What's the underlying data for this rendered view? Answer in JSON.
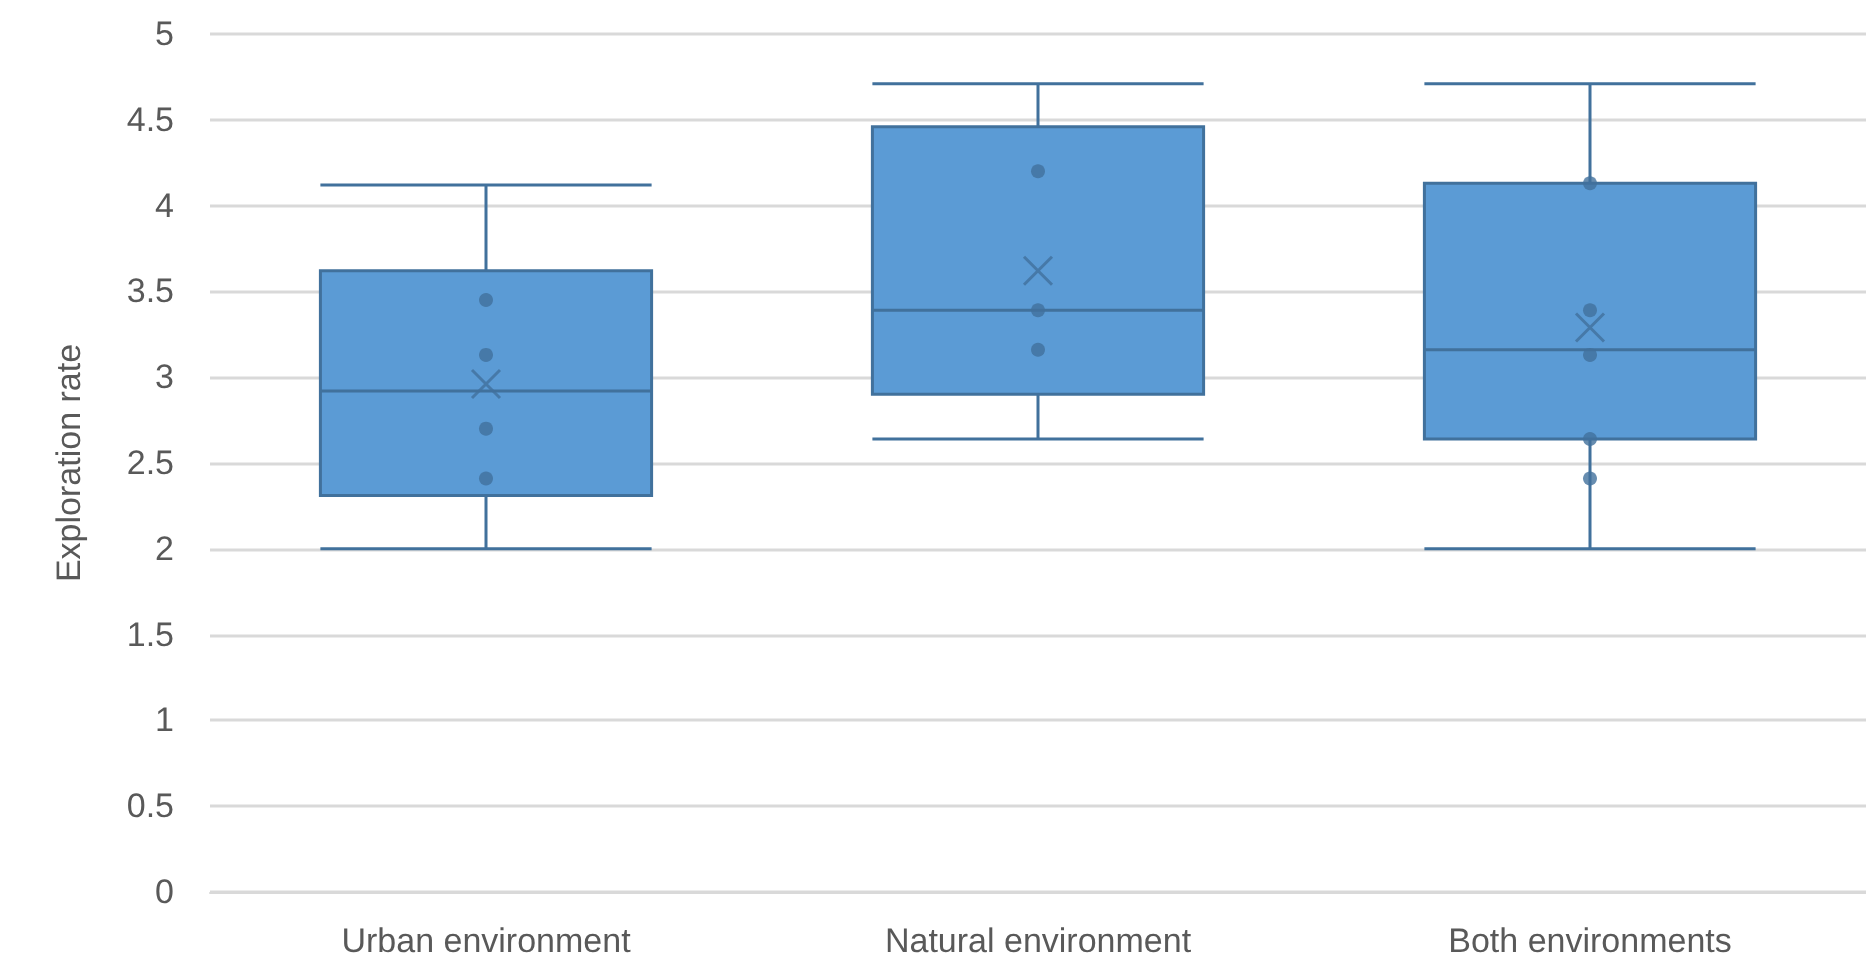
{
  "chart_data": {
    "type": "box",
    "ylabel": "Exploration rate",
    "categories": [
      "Urban environment",
      "Natural environment",
      "Both environments"
    ],
    "ylim": [
      0,
      5
    ],
    "yticks": [
      0,
      0.5,
      1,
      1.5,
      2,
      2.5,
      3,
      3.5,
      4,
      4.5,
      5
    ],
    "grid": "y",
    "series": [
      {
        "color": "#5b9bd5",
        "boxes": [
          {
            "low": 2.0,
            "q1": 2.31,
            "median": 2.92,
            "q3": 3.62,
            "high": 4.12,
            "mean": 2.96
          },
          {
            "low": 2.64,
            "q1": 2.9,
            "median": 3.39,
            "q3": 4.46,
            "high": 4.71,
            "mean": 3.62
          },
          {
            "low": 2.0,
            "q1": 2.64,
            "median": 3.16,
            "q3": 4.13,
            "high": 4.71,
            "mean": 3.29
          }
        ]
      },
      {
        "type": "scatter",
        "color": "#41719c",
        "marker": "circle",
        "x": [
          "Urban environment",
          "Urban environment",
          "Urban environment",
          "Urban environment",
          "Natural environment",
          "Natural environment",
          "Natural environment",
          "Both environments",
          "Both environments",
          "Both environments",
          "Both environments",
          "Both environments"
        ],
        "values": [
          3.45,
          3.13,
          2.7,
          2.41,
          4.2,
          3.39,
          3.16,
          4.13,
          3.39,
          3.13,
          2.64,
          2.41
        ]
      }
    ]
  }
}
